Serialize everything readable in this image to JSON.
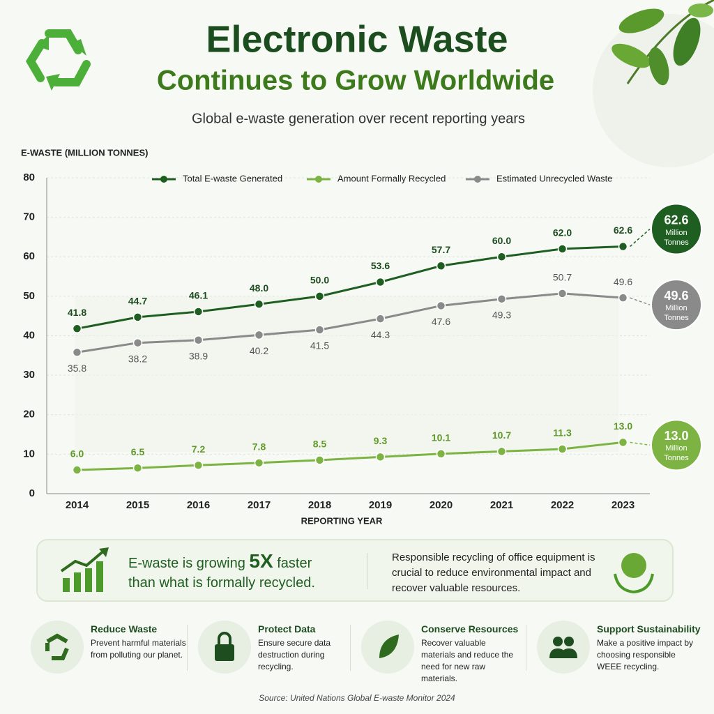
{
  "header": {
    "title": "Electronic Waste",
    "title_line2": "Continues to Grow Worldwide",
    "subtitle": "Global e-waste generation over recent reporting years"
  },
  "chart_data": {
    "type": "line",
    "y_label": "E-WASTE (MILLION TONNES)",
    "x_label": "REPORTING YEAR",
    "categories": [
      "2014",
      "2015",
      "2016",
      "2017",
      "2018",
      "2019",
      "2020",
      "2021",
      "2022",
      "2023"
    ],
    "series": [
      {
        "name": "Total E-waste Generated",
        "color": "#1e5e20",
        "values": [
          41.8,
          44.7,
          46.1,
          48.0,
          50.0,
          53.6,
          57.7,
          60.0,
          62.0,
          62.6
        ],
        "value_labels": [
          "41.8",
          "44.7",
          "46.1",
          "48.0",
          "50.0",
          "53.6",
          "57.7",
          "60.0",
          "62.0",
          "62.6"
        ]
      },
      {
        "name": "Amount Formally Recycled",
        "color": "#7cb342",
        "values": [
          6.0,
          6.5,
          7.2,
          7.8,
          8.5,
          9.3,
          10.1,
          10.7,
          11.3,
          13.0
        ],
        "value_labels": [
          "6.0",
          "6.5",
          "7.2",
          "7.8",
          "8.5",
          "9.3",
          "10.1",
          "10.7",
          "11.3",
          "13.0"
        ]
      },
      {
        "name": "Estimated Unrecycled Waste",
        "color": "#8a8a8a",
        "values": [
          35.8,
          38.2,
          38.9,
          40.2,
          41.5,
          44.3,
          47.6,
          49.3,
          50.7,
          49.6
        ],
        "value_labels": [
          "35.8",
          "38.2",
          "38.9",
          "40.2",
          "41.5",
          "44.3",
          "47.6",
          "49.3",
          "50.7",
          "49.6"
        ]
      }
    ],
    "ylim": [
      0,
      80
    ],
    "yticks": [
      0,
      10,
      20,
      30,
      40,
      50,
      60,
      70,
      80
    ],
    "grid": true,
    "legend": "top",
    "badge_unit": "Million Tonnes"
  },
  "callout": {
    "line1_pre": "E-waste is growing",
    "emphasis": "5X",
    "line1_post": "faster",
    "line2": "than what is formally recycled.",
    "note": "Responsible recycling of office equipment is crucial to reduce environmental impact and recover valuable resources."
  },
  "features": [
    {
      "title": "Reduce Waste",
      "text": "Prevent harmful materials from polluting our planet."
    },
    {
      "title": "Protect Data",
      "text": "Ensure secure data destruction during recycling."
    },
    {
      "title": "Conserve Resources",
      "text": "Recover valuable materials and reduce the need for new raw materials."
    },
    {
      "title": "Support Sustainability",
      "text": "Make a positive impact by choosing responsible WEEE recycling."
    }
  ],
  "source": "Source: United Nations Global E-waste Monitor 2024"
}
